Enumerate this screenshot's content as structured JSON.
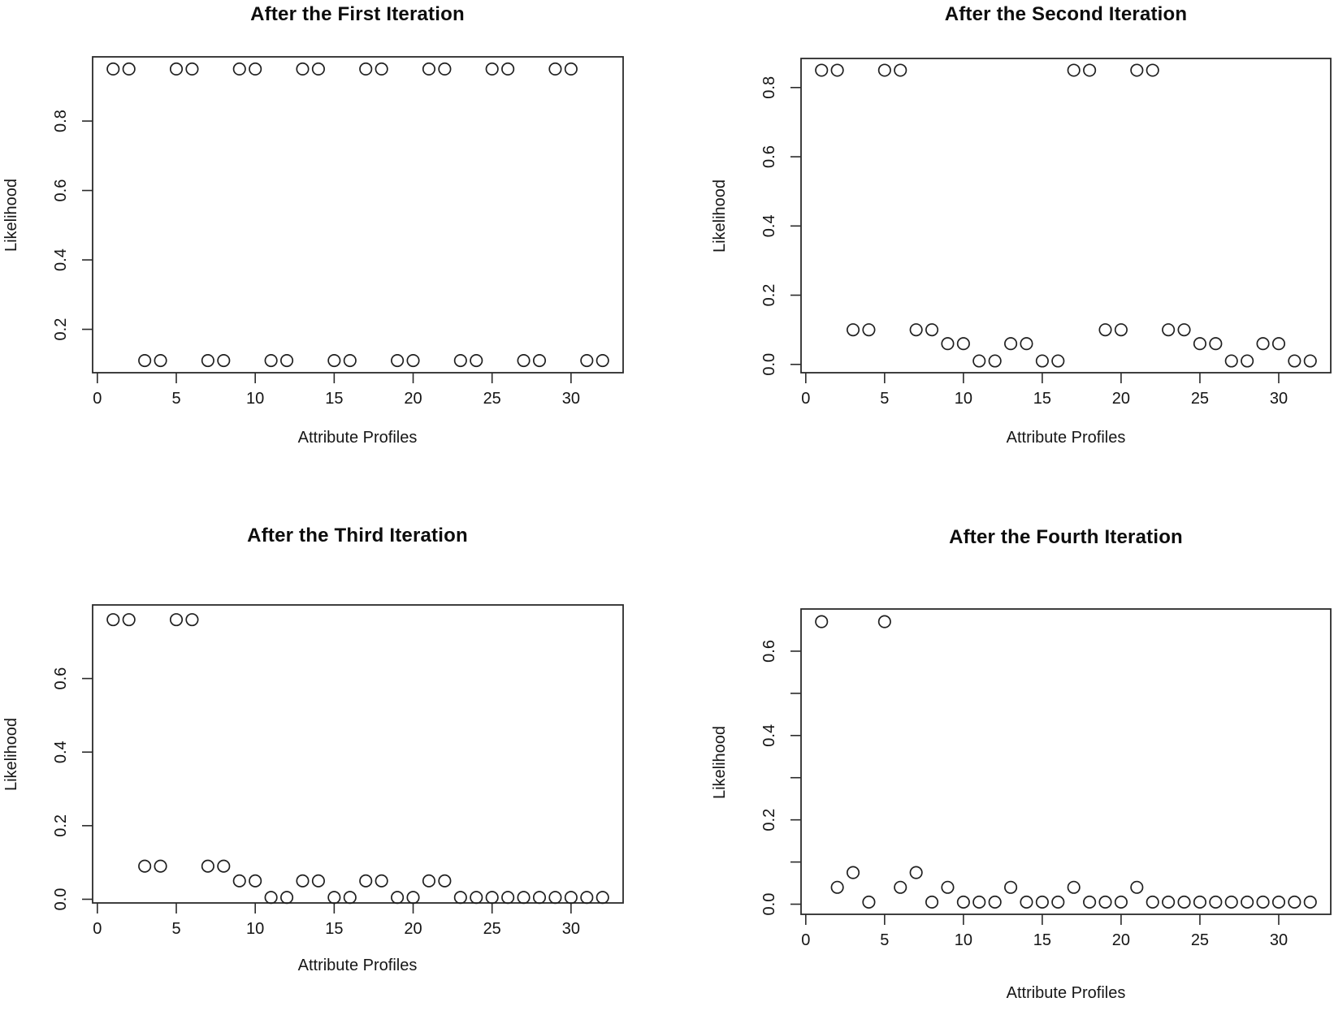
{
  "figure": {
    "background": "#ffffff",
    "marker": "open-circle",
    "marker_color": "#1f1f1f",
    "axis_color": "#2a2a2a"
  },
  "chart_data": [
    {
      "type": "scatter",
      "title": "After the First Iteration",
      "xlabel": "Attribute Profiles",
      "ylabel": "Likelihood",
      "x_start": 1,
      "values": [
        0.95,
        0.95,
        0.11,
        0.11,
        0.95,
        0.95,
        0.11,
        0.11,
        0.95,
        0.95,
        0.11,
        0.11,
        0.95,
        0.95,
        0.11,
        0.11,
        0.95,
        0.95,
        0.11,
        0.11,
        0.95,
        0.95,
        0.11,
        0.11,
        0.95,
        0.95,
        0.11,
        0.11,
        0.95,
        0.95,
        0.11,
        0.11
      ],
      "xlim": [
        -0.3,
        33.3
      ],
      "ylim": [
        0.075,
        0.985
      ],
      "xticks": [
        {
          "v": 0,
          "label": "0"
        },
        {
          "v": 5,
          "label": "5"
        },
        {
          "v": 10,
          "label": "10"
        },
        {
          "v": 15,
          "label": "15"
        },
        {
          "v": 20,
          "label": "20"
        },
        {
          "v": 25,
          "label": "25"
        },
        {
          "v": 30,
          "label": "30"
        }
      ],
      "yticks": [
        {
          "v": 0.2,
          "label": "0.2"
        },
        {
          "v": 0.4,
          "label": "0.4"
        },
        {
          "v": 0.6,
          "label": "0.6"
        },
        {
          "v": 0.8,
          "label": "0.8"
        }
      ],
      "grid": false,
      "legend": "none"
    },
    {
      "type": "scatter",
      "title": "After the Second Iteration",
      "xlabel": "Attribute Profiles",
      "ylabel": "Likelihood",
      "x_start": 1,
      "values": [
        0.85,
        0.85,
        0.1,
        0.1,
        0.85,
        0.85,
        0.1,
        0.1,
        0.06,
        0.06,
        0.01,
        0.01,
        0.06,
        0.06,
        0.01,
        0.01,
        0.85,
        0.85,
        0.1,
        0.1,
        0.85,
        0.85,
        0.1,
        0.1,
        0.06,
        0.06,
        0.01,
        0.01,
        0.06,
        0.06,
        0.01,
        0.01
      ],
      "xlim": [
        -0.3,
        33.3
      ],
      "ylim": [
        -0.024,
        0.884
      ],
      "xticks": [
        {
          "v": 0,
          "label": "0"
        },
        {
          "v": 5,
          "label": "5"
        },
        {
          "v": 10,
          "label": "10"
        },
        {
          "v": 15,
          "label": "15"
        },
        {
          "v": 20,
          "label": "20"
        },
        {
          "v": 25,
          "label": "25"
        },
        {
          "v": 30,
          "label": "30"
        }
      ],
      "yticks": [
        {
          "v": 0.0,
          "label": "0.0"
        },
        {
          "v": 0.2,
          "label": "0.2"
        },
        {
          "v": 0.4,
          "label": "0.4"
        },
        {
          "v": 0.6,
          "label": "0.6"
        },
        {
          "v": 0.8,
          "label": "0.8"
        }
      ],
      "grid": false,
      "legend": "none"
    },
    {
      "type": "scatter",
      "title": "After the Third Iteration",
      "xlabel": "Attribute Profiles",
      "ylabel": "Likelihood",
      "x_start": 1,
      "values": [
        0.76,
        0.76,
        0.09,
        0.09,
        0.76,
        0.76,
        0.09,
        0.09,
        0.05,
        0.05,
        0.005,
        0.005,
        0.05,
        0.05,
        0.005,
        0.005,
        0.05,
        0.05,
        0.005,
        0.005,
        0.05,
        0.05,
        0.005,
        0.005,
        0.005,
        0.005,
        0.005,
        0.005,
        0.005,
        0.005,
        0.005,
        0.005
      ],
      "xlim": [
        -0.3,
        33.3
      ],
      "ylim": [
        -0.01,
        0.8
      ],
      "xticks": [
        {
          "v": 0,
          "label": "0"
        },
        {
          "v": 5,
          "label": "5"
        },
        {
          "v": 10,
          "label": "10"
        },
        {
          "v": 15,
          "label": "15"
        },
        {
          "v": 20,
          "label": "20"
        },
        {
          "v": 25,
          "label": "25"
        },
        {
          "v": 30,
          "label": "30"
        }
      ],
      "yticks": [
        {
          "v": 0.0,
          "label": "0.0"
        },
        {
          "v": 0.2,
          "label": "0.2"
        },
        {
          "v": 0.4,
          "label": "0.4"
        },
        {
          "v": 0.6,
          "label": "0.6"
        }
      ],
      "grid": false,
      "legend": "none"
    },
    {
      "type": "scatter",
      "title": "After the Fourth Iteration",
      "xlabel": "Attribute Profiles",
      "ylabel": "Likelihood",
      "x_start": 1,
      "values": [
        0.67,
        0.04,
        0.075,
        0.005,
        0.67,
        0.04,
        0.075,
        0.005,
        0.04,
        0.005,
        0.005,
        0.005,
        0.04,
        0.005,
        0.005,
        0.005,
        0.04,
        0.005,
        0.005,
        0.005,
        0.04,
        0.005,
        0.005,
        0.005,
        0.005,
        0.005,
        0.005,
        0.005,
        0.005,
        0.005,
        0.005,
        0.005
      ],
      "xlim": [
        -0.3,
        33.3
      ],
      "ylim": [
        -0.024,
        0.7
      ],
      "xticks": [
        {
          "v": 0,
          "label": "0"
        },
        {
          "v": 5,
          "label": "5"
        },
        {
          "v": 10,
          "label": "10"
        },
        {
          "v": 15,
          "label": "15"
        },
        {
          "v": 20,
          "label": "20"
        },
        {
          "v": 25,
          "label": "25"
        },
        {
          "v": 30,
          "label": "30"
        }
      ],
      "yticks": [
        {
          "v": 0.0,
          "label": "0.0"
        },
        {
          "v": 0.1,
          "label": ""
        },
        {
          "v": 0.2,
          "label": "0.2"
        },
        {
          "v": 0.3,
          "label": ""
        },
        {
          "v": 0.4,
          "label": "0.4"
        },
        {
          "v": 0.5,
          "label": ""
        },
        {
          "v": 0.6,
          "label": "0.6"
        }
      ],
      "grid": false,
      "legend": "none"
    }
  ]
}
